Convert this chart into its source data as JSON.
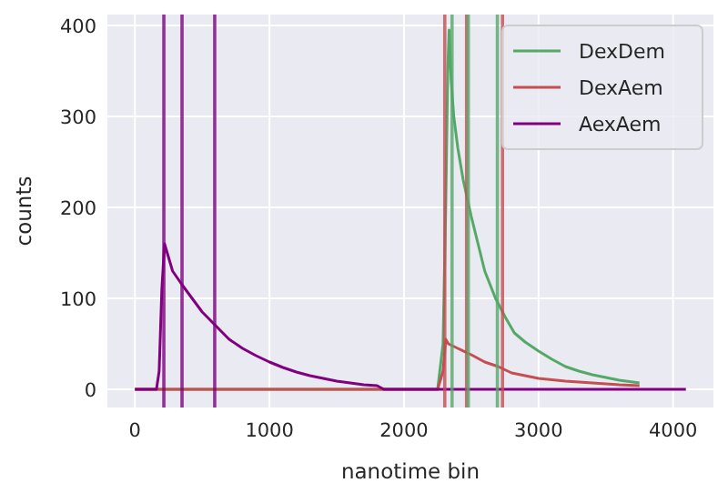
{
  "chart_data": {
    "type": "line",
    "xlabel": "nanotime bin",
    "ylabel": "counts",
    "xlim": [
      -204.75,
      4299.75
    ],
    "ylim": [
      -20,
      412
    ],
    "xticks": [
      0,
      1000,
      2000,
      3000,
      4000
    ],
    "yticks": [
      0,
      100,
      200,
      300,
      400
    ],
    "grid": true,
    "legend": "top right",
    "line_style": "solid",
    "marker": "none",
    "series": [
      {
        "name": "DexDem",
        "color": "#55a868",
        "x": [
          0,
          2250,
          2290,
          2310,
          2325,
          2335,
          2350,
          2370,
          2400,
          2440,
          2500,
          2550,
          2600,
          2680,
          2750,
          2820,
          2900,
          3000,
          3100,
          3200,
          3300,
          3400,
          3500,
          3600,
          3700,
          3750
        ],
        "values": [
          0,
          0,
          50,
          200,
          350,
          395,
          340,
          300,
          265,
          230,
          190,
          160,
          130,
          100,
          80,
          62,
          52,
          42,
          33,
          25,
          20,
          16,
          13,
          10,
          8,
          7
        ]
      },
      {
        "name": "DexAem",
        "color": "#c44e52",
        "x": [
          0,
          2250,
          2290,
          2310,
          2330,
          2400,
          2500,
          2600,
          2700,
          2800,
          2900,
          3000,
          3200,
          3400,
          3600,
          3750
        ],
        "values": [
          0,
          0,
          20,
          55,
          50,
          45,
          38,
          30,
          25,
          18,
          15,
          12,
          9,
          7,
          5,
          4
        ]
      },
      {
        "name": "AexAem",
        "color": "#800080",
        "x": [
          0,
          160,
          180,
          200,
          220,
          240,
          280,
          350,
          400,
          500,
          600,
          700,
          800,
          900,
          1000,
          1100,
          1200,
          1300,
          1400,
          1500,
          1600,
          1700,
          1800,
          1850,
          4095
        ],
        "values": [
          0,
          0,
          20,
          110,
          160,
          150,
          130,
          115,
          105,
          85,
          70,
          55,
          45,
          37,
          30,
          24,
          19,
          15,
          12,
          9,
          7,
          5,
          4,
          0,
          0
        ]
      }
    ],
    "ref_lines": [
      {
        "axis": "x",
        "value": 215,
        "color": "#800080"
      },
      {
        "axis": "x",
        "value": 350,
        "color": "#800080"
      },
      {
        "axis": "x",
        "value": 593,
        "color": "#800080"
      },
      {
        "axis": "x",
        "value": 2303,
        "color": "#c44e52"
      },
      {
        "axis": "x",
        "value": 2357,
        "color": "#55a868"
      },
      {
        "axis": "x",
        "value": 2465,
        "color": "#c44e52"
      },
      {
        "axis": "x",
        "value": 2478,
        "color": "#55a868"
      },
      {
        "axis": "x",
        "value": 2694,
        "color": "#55a868"
      },
      {
        "axis": "x",
        "value": 2732,
        "color": "#c44e52"
      }
    ]
  }
}
